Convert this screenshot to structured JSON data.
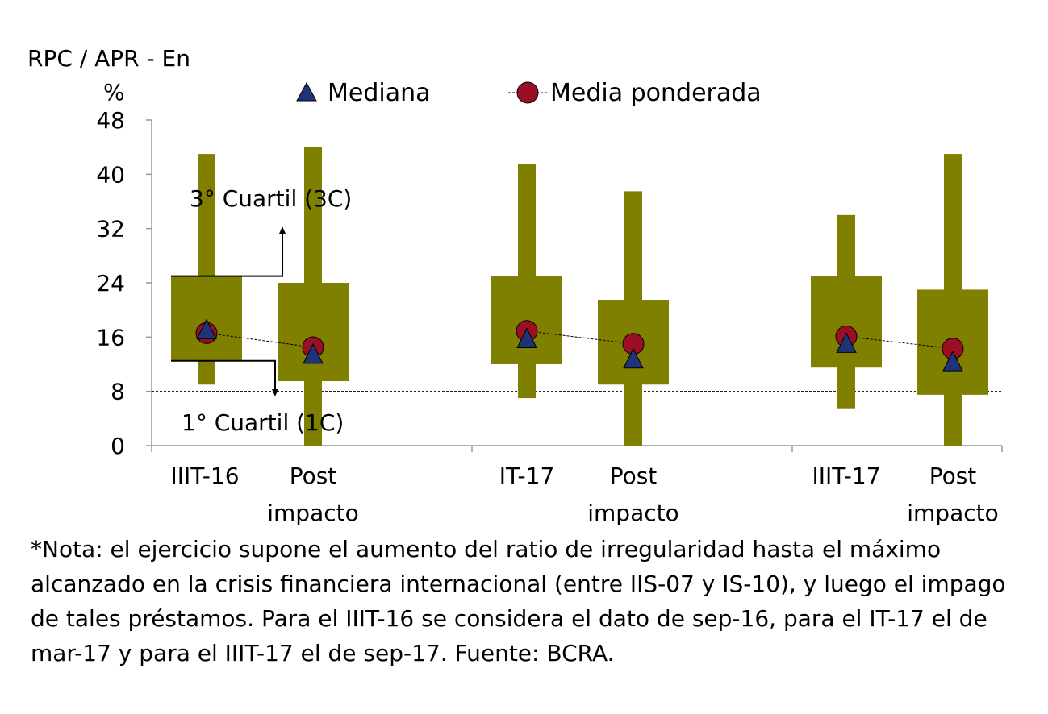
{
  "chart_data": {
    "type": "box",
    "y_title": "RPC / APR - En",
    "y_unit": "%",
    "ylim": [
      0,
      48
    ],
    "yticks": [
      0,
      8,
      16,
      24,
      32,
      40,
      48
    ],
    "reference_line": 8,
    "categories": [
      [
        "IIIT-16"
      ],
      [
        "Post",
        "impacto"
      ],
      [
        "IT-17"
      ],
      [
        "Post",
        "impacto"
      ],
      [
        "IIIT-17"
      ],
      [
        "Post",
        "impacto"
      ]
    ],
    "boxes": [
      {
        "low": 9,
        "q1": 12.5,
        "q3": 25,
        "high": 43,
        "median": 16.8,
        "weighted_mean": 16.6
      },
      {
        "low": 0,
        "q1": 9.5,
        "q3": 24,
        "high": 44,
        "median": 13.2,
        "weighted_mean": 14.5
      },
      {
        "low": 7,
        "q1": 12,
        "q3": 25,
        "high": 41.5,
        "median": 15.5,
        "weighted_mean": 16.9
      },
      {
        "low": 0,
        "q1": 9,
        "q3": 21.5,
        "high": 37.5,
        "median": 12.5,
        "weighted_mean": 15
      },
      {
        "low": 5.5,
        "q1": 11.5,
        "q3": 25,
        "high": 34,
        "median": 14.8,
        "weighted_mean": 16.1
      },
      {
        "low": 0,
        "q1": 7.5,
        "q3": 23,
        "high": 43,
        "median": 12.1,
        "weighted_mean": 14.3
      }
    ],
    "legend": [
      {
        "name": "Mediana",
        "marker": "triangle",
        "color": "#1f3474"
      },
      {
        "name": "Media ponderada",
        "marker": "circle",
        "color": "#9a0f24"
      }
    ],
    "annotations": {
      "third_quartile": "3° Cuartil (3C)",
      "first_quartile": "1° Cuartil (1C)"
    },
    "colors": {
      "box": "#808000",
      "median": "#1f3474",
      "weighted_mean": "#9a0f24"
    }
  },
  "note": "*Nota: el ejercicio supone el aumento del ratio de irregularidad hasta el máximo alcanzado en la crisis financiera internacional (entre IIS-07 y IS-10), y luego el impago de tales préstamos. Para el IIIT-16 se considera el dato de sep-16, para el IT-17 el de mar-17 y para el IIIT-17 el de sep-17. Fuente: BCRA."
}
